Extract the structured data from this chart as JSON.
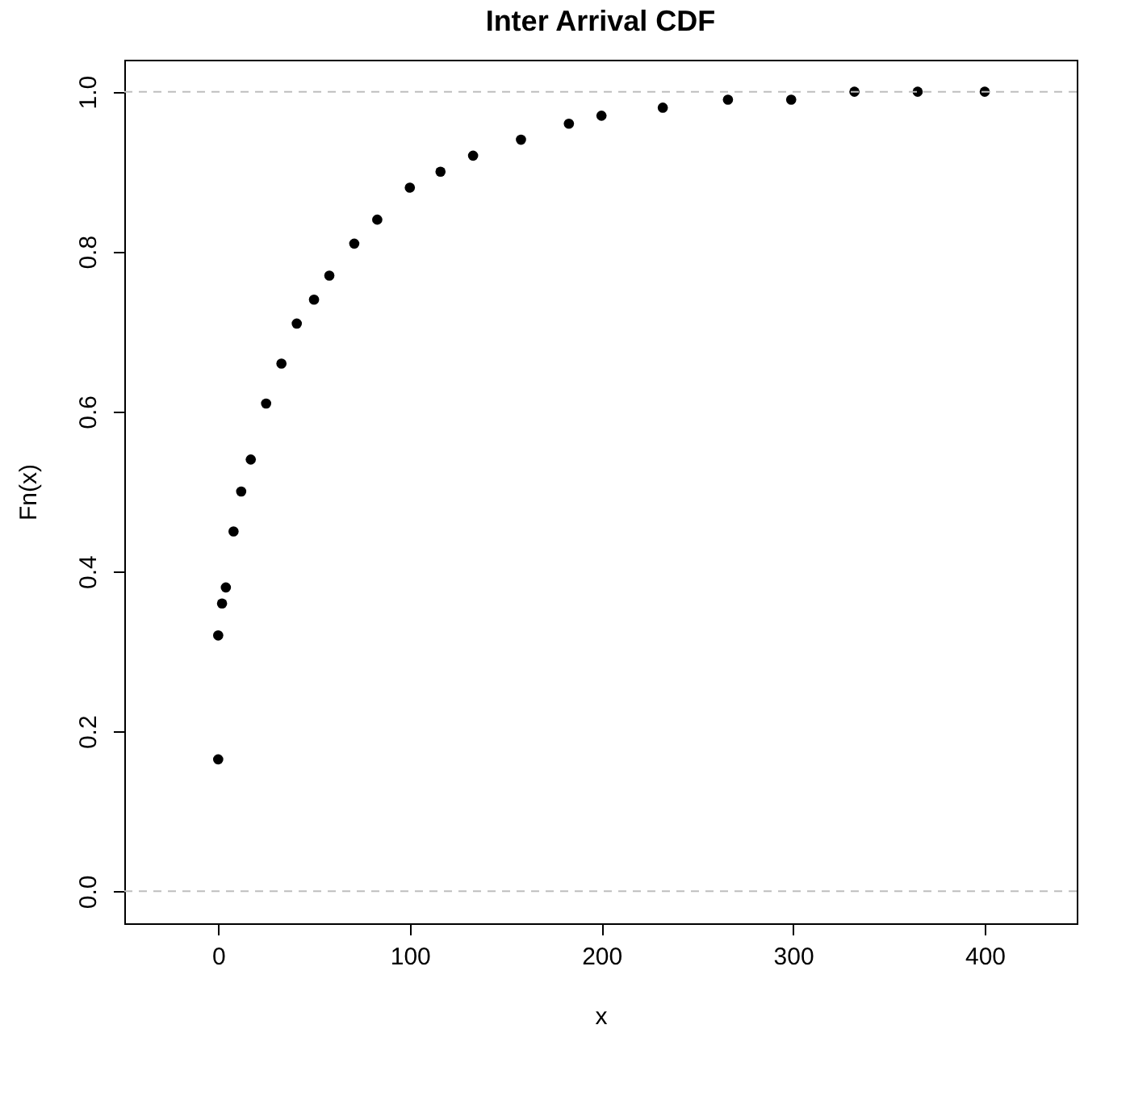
{
  "chart_data": {
    "type": "scatter",
    "title": "Inter Arrival CDF",
    "xlabel": "x",
    "ylabel": "Fn(x)",
    "x": [
      0,
      0,
      2,
      4,
      8,
      12,
      17,
      25,
      33,
      41,
      50,
      58,
      71,
      83,
      100,
      116,
      133,
      158,
      183,
      200,
      232,
      266,
      299,
      332,
      365,
      400
    ],
    "series": [
      {
        "color": "#000000",
        "values": [
          0.165,
          0.32,
          0.36,
          0.38,
          0.45,
          0.5,
          0.54,
          0.61,
          0.66,
          0.71,
          0.74,
          0.77,
          0.81,
          0.84,
          0.88,
          0.9,
          0.92,
          0.94,
          0.96,
          0.97,
          0.98,
          0.99,
          0.99,
          1.0,
          1.0,
          1.0
        ]
      }
    ],
    "xlim": [
      -49,
      448
    ],
    "ylim": [
      -0.04,
      1.04
    ],
    "xticks": [
      0,
      100,
      200,
      300,
      400
    ],
    "yticks": [
      {
        "value": 0,
        "label": "0.0"
      },
      {
        "value": 0.2,
        "label": "0.2"
      },
      {
        "value": 0.4,
        "label": "0.4"
      },
      {
        "value": 0.6,
        "label": "0.6"
      },
      {
        "value": 0.8,
        "label": "0.8"
      },
      {
        "value": 1,
        "label": "1.0"
      }
    ],
    "ref_lines": [
      {
        "axis": "y",
        "value": 0,
        "color": "#bebebe",
        "line_style": "dashed"
      },
      {
        "axis": "y",
        "value": 1,
        "color": "#bebebe",
        "line_style": "dashed"
      }
    ],
    "marker": "circle",
    "grid": false
  }
}
